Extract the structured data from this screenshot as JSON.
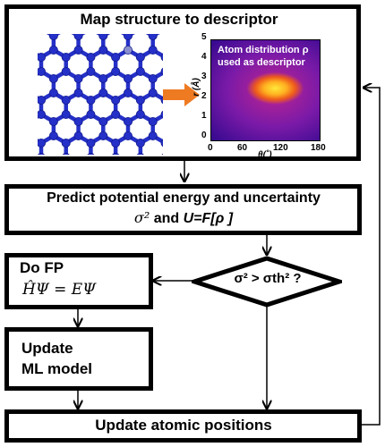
{
  "top_box": {
    "title": "Map structure to descriptor",
    "heatmap_text_line1": "Atom distribution ρ",
    "heatmap_text_line2": "used as descriptor",
    "y_axis_label": "r (Å)",
    "x_axis_label": "θ(˚)",
    "y_ticks": [
      "5",
      "4",
      "3",
      "2",
      "1",
      "0"
    ],
    "x_ticks": [
      "0",
      "60",
      "120",
      "180"
    ]
  },
  "predict_box": {
    "line1": "Predict potential energy and uncertainty",
    "line2_a": "σ²",
    "line2_b": " and ",
    "line2_c": "U=F[ρ ]"
  },
  "decision": {
    "text": "σ² > σth² ?"
  },
  "fp_box": {
    "title": "Do FP",
    "equation": "ĤΨ = EΨ"
  },
  "update_ml_box": {
    "line1": "Update",
    "line2": "ML model"
  },
  "update_pos_box": {
    "label": "Update atomic positions"
  },
  "colors": {
    "lattice_blue": "#2530c8",
    "arrow_orange": "#ee7a22",
    "border": "#000000"
  }
}
